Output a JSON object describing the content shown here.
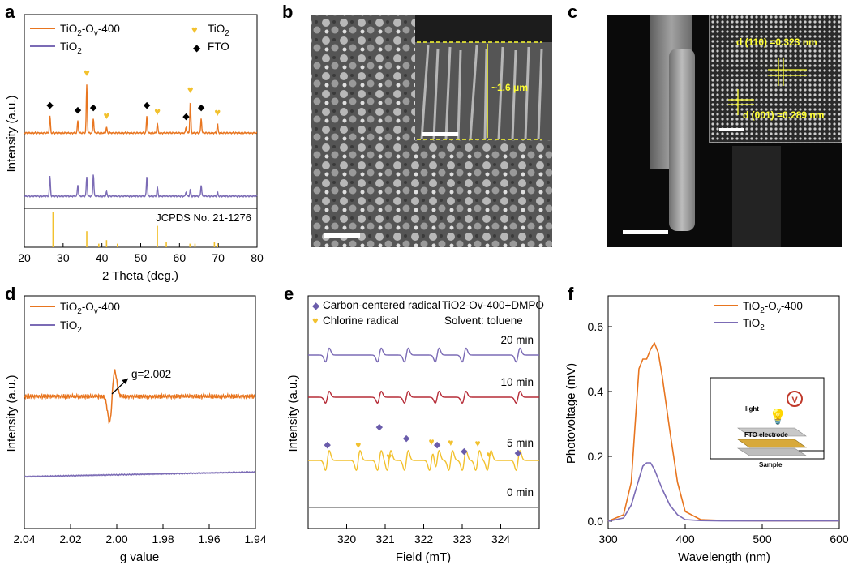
{
  "panel_labels": [
    "a",
    "b",
    "c",
    "d",
    "e",
    "f"
  ],
  "colors": {
    "orange": "#e8751f",
    "purple": "#7b6bb5",
    "yellow": "#f2c12e",
    "red": "#b52b37",
    "gray": "#808080",
    "annot_yellow": "#ffff33"
  },
  "chart_data": [
    {
      "panel": "a",
      "type": "line",
      "xlabel": "2 Theta (deg.)",
      "ylabel": "Intensity (a.u.)",
      "xlim": [
        20,
        80
      ],
      "xticks": [
        20,
        30,
        40,
        50,
        60,
        70,
        80
      ],
      "legend": [
        "TiO2-Ov-400",
        "TiO2",
        "TiO2",
        "FTO"
      ],
      "series": [
        {
          "name": "TiO2-Ov-400",
          "peaks": [
            [
              26.6,
              0.35
            ],
            [
              33.8,
              0.25
            ],
            [
              36.1,
              1.0
            ],
            [
              37.8,
              0.3
            ],
            [
              41.2,
              0.12
            ],
            [
              51.6,
              0.35
            ],
            [
              54.3,
              0.2
            ],
            [
              61.7,
              0.12
            ],
            [
              62.8,
              0.65
            ],
            [
              65.6,
              0.3
            ],
            [
              69.8,
              0.18
            ]
          ]
        },
        {
          "name": "TiO2",
          "peaks": [
            [
              26.6,
              0.45
            ],
            [
              33.8,
              0.25
            ],
            [
              36.1,
              0.45
            ],
            [
              37.8,
              0.5
            ],
            [
              41.2,
              0.1
            ],
            [
              51.6,
              0.45
            ],
            [
              54.3,
              0.2
            ],
            [
              61.7,
              0.1
            ],
            [
              62.8,
              0.15
            ],
            [
              65.6,
              0.25
            ],
            [
              69.8,
              0.08
            ]
          ]
        }
      ],
      "fto_markers": [
        26.6,
        33.8,
        37.8,
        51.6,
        61.7,
        65.6
      ],
      "tio2_markers": [
        36.1,
        41.2,
        54.3,
        62.8,
        69.8
      ],
      "reference": {
        "label": "JCPDS No. 21-1276",
        "lines": [
          [
            27.4,
            1.0
          ],
          [
            36.1,
            0.45
          ],
          [
            39.2,
            0.1
          ],
          [
            41.2,
            0.2
          ],
          [
            44.0,
            0.1
          ],
          [
            54.3,
            0.6
          ],
          [
            56.6,
            0.15
          ],
          [
            62.7,
            0.1
          ],
          [
            64.0,
            0.1
          ],
          [
            69.0,
            0.15
          ],
          [
            69.8,
            0.1
          ]
        ]
      }
    },
    {
      "panel": "d",
      "type": "line",
      "xlabel": "g value",
      "ylabel": "Intensity (a.u.)",
      "xlim": [
        2.04,
        1.94
      ],
      "xticks": [
        "2.04",
        "2.02",
        "2.00",
        "1.98",
        "1.96",
        "1.94"
      ],
      "legend": [
        "TiO2-Ov-400",
        "TiO2"
      ],
      "annotation": "g=2.002",
      "signal_center": 2.002
    },
    {
      "panel": "e",
      "type": "line",
      "xlabel": "Field (mT)",
      "ylabel": "Intensity (a.u.)",
      "xlim": [
        319,
        325
      ],
      "xticks": [
        320,
        321,
        322,
        323,
        324
      ],
      "legend": [
        "Carbon-centered radical",
        "Chlorine radical"
      ],
      "system": "TiO2-Ov-400+DMPO",
      "solvent": "Solvent: toluene",
      "series": [
        {
          "name": "20 min",
          "color": "#7b6bb5",
          "lines": [
            319.5,
            320.85,
            321.55,
            322.35,
            323.05,
            324.45
          ]
        },
        {
          "name": "10 min",
          "color": "#b52b37",
          "lines": [
            319.5,
            320.85,
            321.55,
            322.35,
            323.05,
            324.45
          ]
        },
        {
          "name": "5 min",
          "color": "#f2c12e",
          "lines": [
            319.5,
            320.3,
            320.85,
            321.1,
            321.55,
            322.2,
            322.35,
            322.7,
            323.05,
            323.4,
            323.7,
            324.45
          ]
        },
        {
          "name": "0 min",
          "color": "#808080",
          "lines": []
        }
      ],
      "carbon_markers": [
        319.5,
        320.85,
        321.55,
        322.35,
        323.05,
        324.45
      ],
      "chlorine_markers": [
        320.3,
        321.1,
        322.2,
        322.7,
        323.4,
        323.7
      ]
    },
    {
      "panel": "f",
      "type": "line",
      "xlabel": "Wavelength (nm)",
      "ylabel": "Photovoltage (mV)",
      "xlim": [
        300,
        600
      ],
      "ylim": [
        0,
        0.6
      ],
      "xticks": [
        300,
        400,
        500,
        600
      ],
      "yticks": [
        "0.0",
        "0.2",
        "0.4",
        "0.6"
      ],
      "legend": [
        "TiO2-Ov-400",
        "TiO2"
      ],
      "series": [
        {
          "name": "TiO2-Ov-400",
          "x": [
            300,
            320,
            330,
            335,
            340,
            345,
            350,
            355,
            360,
            365,
            370,
            380,
            390,
            400,
            420,
            450,
            500,
            550,
            600
          ],
          "y": [
            0.0,
            0.02,
            0.12,
            0.3,
            0.47,
            0.5,
            0.5,
            0.53,
            0.55,
            0.52,
            0.45,
            0.28,
            0.12,
            0.03,
            0.005,
            0.002,
            0.001,
            0.001,
            0.001
          ]
        },
        {
          "name": "TiO2",
          "x": [
            300,
            320,
            330,
            340,
            345,
            350,
            355,
            360,
            370,
            380,
            390,
            400,
            420,
            450,
            500,
            550,
            600
          ],
          "y": [
            0.0,
            0.01,
            0.05,
            0.13,
            0.17,
            0.18,
            0.18,
            0.16,
            0.1,
            0.05,
            0.02,
            0.005,
            0.002,
            0.001,
            0.001,
            0.001,
            0.001
          ]
        }
      ],
      "inset": {
        "light": "light",
        "electrode": "FTO electrode",
        "sample": "Sample",
        "meter": "V"
      }
    }
  ],
  "images": {
    "b": {
      "annotation": "~1.6 μm"
    },
    "c": {
      "d110": "d (110) =0.323 nm",
      "d001": "d (001) =0.289 nm"
    }
  },
  "text": {
    "a_leg1_main": "TiO",
    "a_leg1_sub": "2",
    "a_leg1_tail1": "-O",
    "a_leg1_sub2": "v",
    "a_leg1_tail2": "-400",
    "a_leg2_main": "TiO",
    "a_leg2_sub": "2",
    "a_leg3_main": "TiO",
    "a_leg3_sub": "2",
    "a_leg4": "FTO"
  }
}
